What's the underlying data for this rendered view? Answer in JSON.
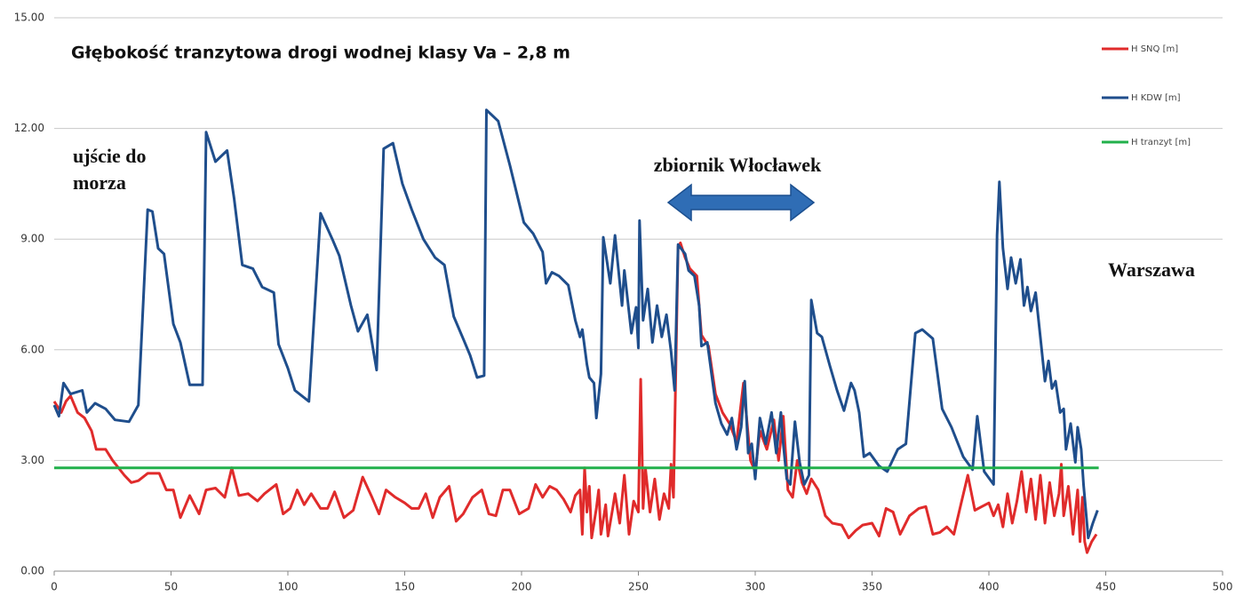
{
  "chart_data": {
    "type": "line",
    "title": "Głębokość tranzytowa drogi wodnej klasy Va – 2,8 m",
    "annotations": [
      "ujście do",
      "morza",
      "zbiornik Włocławek",
      "Warszawa"
    ],
    "xlim": [
      0,
      500
    ],
    "xticks": [
      0,
      50,
      100,
      150,
      200,
      250,
      300,
      350,
      400,
      450,
      500
    ],
    "ylim": [
      0,
      15
    ],
    "yticks": [
      {
        "value": 0,
        "label": "0.00"
      },
      {
        "value": 3,
        "label": "3.00"
      },
      {
        "value": 6,
        "label": "6.00"
      },
      {
        "value": 9,
        "label": "9.00"
      },
      {
        "value": 12,
        "label": "12.00"
      },
      {
        "value": 15,
        "label": "15.00"
      }
    ],
    "grid": true,
    "series": [
      {
        "name": "H SNQ [m]",
        "color": "#e02b2b",
        "x": [
          0,
          3,
          5,
          7,
          10,
          13,
          16,
          18,
          22,
          25,
          30,
          33,
          36,
          40,
          45,
          48,
          51,
          54,
          58,
          62,
          65,
          69,
          73,
          76,
          79,
          83,
          87,
          90,
          95,
          98,
          101,
          104,
          107,
          110,
          114,
          117,
          120,
          124,
          128,
          132,
          136,
          139,
          142,
          146,
          150,
          153,
          156,
          159,
          162,
          165,
          169,
          172,
          175,
          179,
          183,
          186,
          189,
          192,
          195,
          199,
          203,
          206,
          209,
          212,
          215,
          218,
          221,
          223,
          225,
          226,
          227,
          228,
          229,
          230,
          232,
          233,
          234,
          236,
          237,
          239,
          240,
          242,
          244,
          246,
          248,
          250,
          251,
          252,
          253,
          255,
          257,
          259,
          261,
          263,
          264,
          265,
          267,
          268,
          270,
          272,
          275,
          277,
          280,
          283,
          286,
          289,
          292,
          295,
          298,
          300,
          302,
          305,
          308,
          310,
          312,
          314,
          316,
          318,
          320,
          322,
          324,
          327,
          330,
          333,
          337,
          340,
          343,
          346,
          350,
          353,
          356,
          359,
          362,
          366,
          370,
          373,
          376,
          379,
          382,
          385,
          388,
          391,
          394,
          397,
          400,
          402,
          404,
          406,
          408,
          410,
          412,
          414,
          416,
          418,
          420,
          422,
          424,
          426,
          428,
          430,
          431,
          432,
          434,
          436,
          438,
          439,
          440,
          441,
          442,
          444,
          446
        ],
        "values": [
          4.6,
          4.3,
          4.6,
          4.75,
          4.3,
          4.15,
          3.8,
          3.3,
          3.3,
          3.0,
          2.6,
          2.4,
          2.45,
          2.65,
          2.65,
          2.2,
          2.2,
          1.45,
          2.05,
          1.55,
          2.2,
          2.25,
          2.0,
          2.8,
          2.05,
          2.1,
          1.9,
          2.1,
          2.35,
          1.55,
          1.7,
          2.2,
          1.8,
          2.1,
          1.7,
          1.7,
          2.15,
          1.45,
          1.65,
          2.55,
          2.0,
          1.55,
          2.2,
          2.0,
          1.85,
          1.7,
          1.7,
          2.1,
          1.45,
          2.0,
          2.3,
          1.35,
          1.55,
          2.0,
          2.2,
          1.55,
          1.5,
          2.2,
          2.2,
          1.55,
          1.7,
          2.35,
          2.0,
          2.3,
          2.2,
          1.95,
          1.6,
          2.05,
          2.2,
          1.0,
          2.8,
          1.6,
          2.3,
          0.9,
          1.7,
          2.2,
          1.0,
          1.8,
          0.95,
          1.7,
          2.1,
          1.3,
          2.6,
          1.0,
          1.9,
          1.6,
          5.2,
          1.7,
          2.8,
          1.6,
          2.5,
          1.4,
          2.1,
          1.7,
          2.9,
          2.0,
          8.8,
          8.9,
          8.5,
          8.2,
          8.0,
          6.4,
          6.1,
          4.8,
          4.3,
          4.0,
          3.5,
          5.1,
          3.0,
          2.7,
          3.8,
          3.3,
          4.1,
          3.0,
          4.2,
          2.2,
          2.0,
          3.0,
          2.4,
          2.1,
          2.5,
          2.2,
          1.5,
          1.3,
          1.25,
          0.9,
          1.1,
          1.25,
          1.3,
          0.95,
          1.7,
          1.6,
          1.0,
          1.5,
          1.7,
          1.75,
          1.0,
          1.05,
          1.2,
          1.0,
          1.8,
          2.6,
          1.65,
          1.75,
          1.85,
          1.5,
          1.8,
          1.2,
          2.1,
          1.3,
          1.9,
          2.7,
          1.6,
          2.5,
          1.4,
          2.6,
          1.3,
          2.4,
          1.5,
          2.1,
          2.9,
          1.5,
          2.3,
          1.0,
          2.2,
          0.8,
          2.0,
          0.8,
          0.5,
          0.8,
          1.0
        ]
      },
      {
        "name": "H KDW [m]",
        "color": "#1f4e8c",
        "x": [
          0,
          2,
          4,
          7,
          12,
          14,
          17.5,
          22,
          26,
          32,
          36,
          40,
          42,
          44.5,
          47,
          51,
          54,
          58,
          63.5,
          65,
          69,
          74,
          77,
          80.5,
          85,
          89,
          94,
          96,
          100,
          103,
          109,
          114,
          119,
          122,
          127,
          130,
          134,
          138,
          141,
          145,
          149,
          153,
          158,
          163,
          167,
          171,
          175,
          178,
          181,
          184,
          185,
          190,
          195,
          201,
          205,
          209,
          210.5,
          213,
          216,
          220,
          223,
          225,
          226,
          228,
          229,
          231,
          232,
          234,
          235,
          238,
          240,
          243,
          244,
          247,
          249,
          250,
          250.5,
          252,
          254,
          256,
          258,
          260,
          262,
          264,
          265.5,
          267,
          270,
          271.5,
          274,
          276,
          277,
          279.5,
          281,
          283,
          285.5,
          288,
          290,
          292,
          294,
          295.5,
          297,
          298.5,
          300,
          302,
          304.5,
          307,
          309,
          311,
          312,
          313.5,
          315,
          317,
          319,
          321,
          323,
          324,
          326.5,
          328.5,
          332,
          335,
          338,
          341,
          342.5,
          344.5,
          346.5,
          349,
          353,
          356.5,
          361,
          364.5,
          368.5,
          371.5,
          376,
          380,
          384,
          389,
          393,
          395,
          398,
          402,
          403.5,
          404.5,
          406,
          408,
          409.5,
          411.5,
          413.5,
          415,
          416.5,
          418,
          420,
          422,
          424,
          425.5,
          427,
          428.5,
          430.5,
          432,
          433,
          435,
          437,
          438,
          439.5,
          440.5,
          442.5,
          444.5,
          446.5
        ],
        "values": [
          4.5,
          4.2,
          5.1,
          4.8,
          4.9,
          4.3,
          4.55,
          4.4,
          4.1,
          4.05,
          4.5,
          9.8,
          9.75,
          8.75,
          8.6,
          6.7,
          6.2,
          5.05,
          5.05,
          11.9,
          11.1,
          11.4,
          10.1,
          8.3,
          8.2,
          7.7,
          7.55,
          6.15,
          5.5,
          4.9,
          4.6,
          9.7,
          9.0,
          8.55,
          7.2,
          6.5,
          6.95,
          5.45,
          11.45,
          11.6,
          10.5,
          9.8,
          9.0,
          8.5,
          8.3,
          6.9,
          6.3,
          5.85,
          5.25,
          5.3,
          12.5,
          12.2,
          11.0,
          9.45,
          9.15,
          8.65,
          7.8,
          8.1,
          8.0,
          7.75,
          6.8,
          6.35,
          6.55,
          5.6,
          5.25,
          5.1,
          4.15,
          5.35,
          9.05,
          7.8,
          9.1,
          7.2,
          8.15,
          6.45,
          7.15,
          6.05,
          9.5,
          6.8,
          7.65,
          6.2,
          7.2,
          6.35,
          6.95,
          5.95,
          4.9,
          8.85,
          8.6,
          8.15,
          8.0,
          7.2,
          6.1,
          6.2,
          5.5,
          4.55,
          4.0,
          3.7,
          4.15,
          3.3,
          3.9,
          5.15,
          3.2,
          3.45,
          2.5,
          4.15,
          3.45,
          4.3,
          3.2,
          4.3,
          3.45,
          2.5,
          2.35,
          4.05,
          2.95,
          2.35,
          2.6,
          7.35,
          6.45,
          6.35,
          5.55,
          4.9,
          4.35,
          5.1,
          4.9,
          4.3,
          3.1,
          3.2,
          2.85,
          2.7,
          3.3,
          3.45,
          6.45,
          6.55,
          6.3,
          4.4,
          3.9,
          3.1,
          2.75,
          4.2,
          2.7,
          2.35,
          9.1,
          10.55,
          8.75,
          7.65,
          8.5,
          7.8,
          8.45,
          7.2,
          7.7,
          7.05,
          7.55,
          6.35,
          5.15,
          5.7,
          4.95,
          5.15,
          4.3,
          4.4,
          3.3,
          4.0,
          2.95,
          3.9,
          3.3,
          2.35,
          0.9,
          1.3,
          1.65
        ]
      },
      {
        "name": "H tranzyt [m]",
        "color": "#22b04b",
        "x": [
          0,
          447
        ],
        "values": [
          2.8,
          2.8
        ]
      }
    ]
  }
}
